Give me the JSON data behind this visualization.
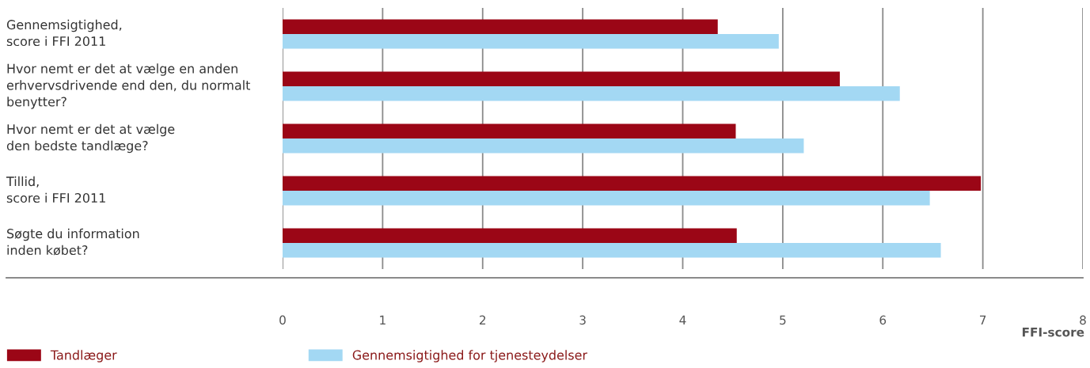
{
  "chart_data": {
    "type": "bar",
    "orientation": "horizontal",
    "xlabel": "FFI-score",
    "categories": [
      "Gennemsigtighed,\nscore i FFI 2011",
      "Hvor nemt er det at vælge en anden\nerhvervsdrivende end den, du normalt\nbenytter?",
      "Hvor nemt er det at vælge\nden bedste tandlæge?",
      "Tillid,\nscore i FFI 2011",
      "Søgte du information\ninden købet?"
    ],
    "series": [
      {
        "name": "Tandlæger",
        "color": "#9b0616",
        "values": [
          4.35,
          5.57,
          4.53,
          6.98,
          4.54
        ]
      },
      {
        "name": "Gennemsigtighed for tjenesteydelser",
        "color": "#a3d8f3",
        "values": [
          4.96,
          6.17,
          5.21,
          6.47,
          6.58
        ]
      }
    ],
    "xlim": [
      0,
      8
    ],
    "xticks": [
      0,
      1,
      2,
      3,
      4,
      5,
      6,
      7,
      8
    ],
    "grid": "x",
    "legend": "bottom left"
  }
}
